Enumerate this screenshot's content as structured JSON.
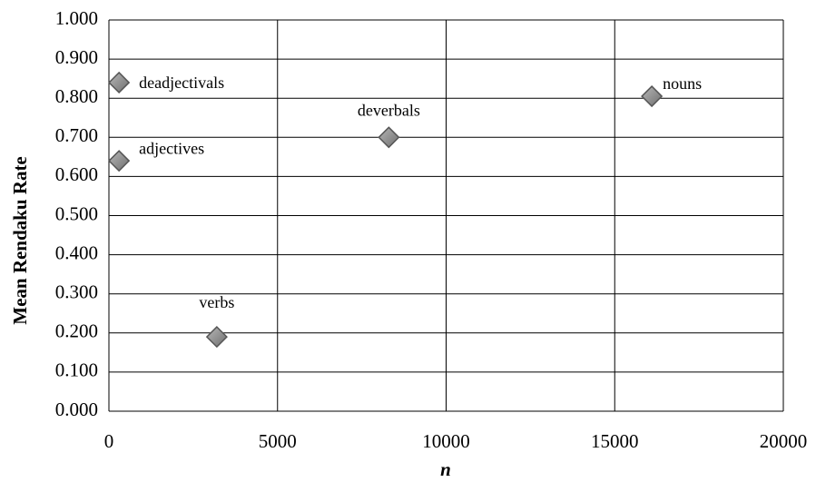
{
  "chart_data": {
    "type": "scatter",
    "x_label": "n",
    "y_label": "Mean Rendaku Rate",
    "point_labels": [
      "deadjectivals",
      "adjectives",
      "deverbals",
      "nouns",
      "verbs"
    ],
    "x": [
      300,
      300,
      8300,
      16100,
      3200
    ],
    "values": [
      0.84,
      0.64,
      0.7,
      0.805,
      0.19
    ],
    "color": "#8c8c8c",
    "xlim": [
      0,
      20000
    ],
    "ylim": [
      0,
      1
    ],
    "xticks": [
      0,
      5000,
      10000,
      15000,
      20000
    ],
    "yticks": [
      {
        "value": 0,
        "label": "0.000"
      },
      {
        "value": 0.1,
        "label": "0.100"
      },
      {
        "value": 0.2,
        "label": "0.200"
      },
      {
        "value": 0.3,
        "label": "0.300"
      },
      {
        "value": 0.4,
        "label": "0.400"
      },
      {
        "value": 0.5,
        "label": "0.500"
      },
      {
        "value": 0.6,
        "label": "0.600"
      },
      {
        "value": 0.7,
        "label": "0.700"
      },
      {
        "value": 0.8,
        "label": "0.800"
      },
      {
        "value": 0.9,
        "label": "0.900"
      },
      {
        "value": 1,
        "label": "1.000"
      }
    ],
    "grid": true
  }
}
